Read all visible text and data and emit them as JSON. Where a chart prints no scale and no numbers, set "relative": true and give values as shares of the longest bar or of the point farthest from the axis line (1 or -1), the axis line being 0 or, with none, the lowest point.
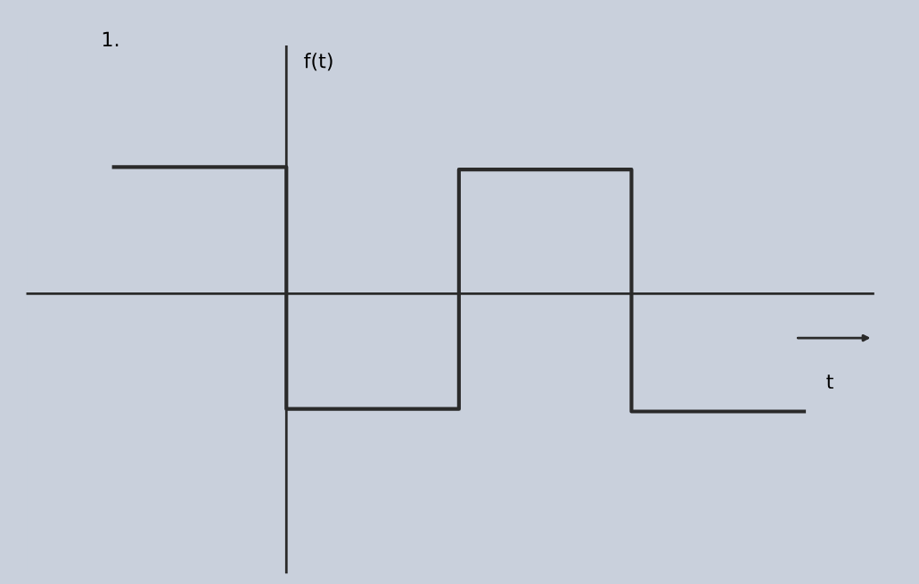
{
  "chart_data": {
    "type": "step",
    "title": "1.",
    "ylabel": "f(t)",
    "xlabel": "t",
    "relative": true,
    "categories": [
      null,
      null,
      null,
      null,
      null
    ],
    "series": [
      {
        "color": "#2a2a2a",
        "values": [
          1,
          -0.91,
          0.98,
          -0.93,
          -0.93
        ]
      }
    ],
    "grid": false,
    "legend": false
  }
}
